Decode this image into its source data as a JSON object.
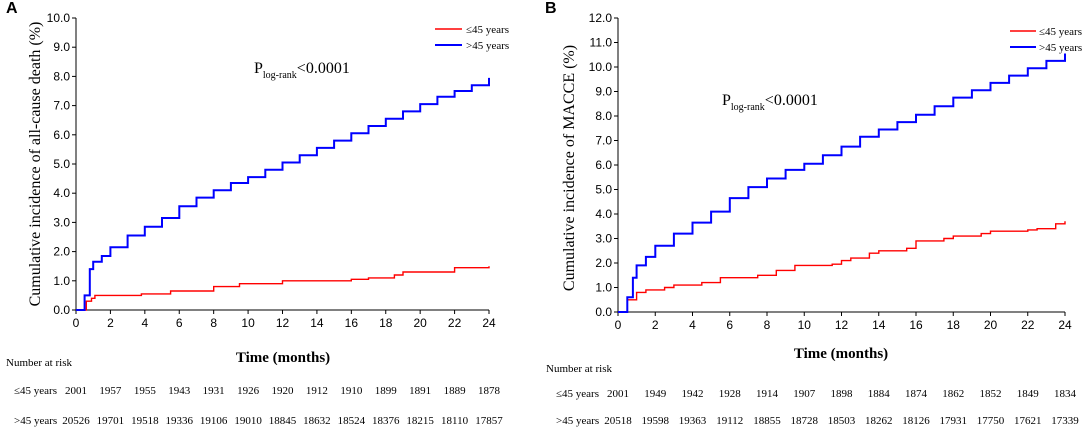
{
  "chart_data": [
    {
      "type": "line",
      "panel_label": "A",
      "ylabel": "Cumulative incidence of all-cause death (%)",
      "xlabel": "Time (months)",
      "xlim": [
        0,
        24
      ],
      "ylim": [
        0,
        10
      ],
      "x_ticks": [
        "0",
        "2",
        "4",
        "6",
        "8",
        "10",
        "12",
        "14",
        "16",
        "18",
        "20",
        "22",
        "24"
      ],
      "y_ticks": [
        "0.0",
        "1.0",
        "2.0",
        "3.0",
        "4.0",
        "5.0",
        "6.0",
        "7.0",
        "8.0",
        "9.0",
        "10.0"
      ],
      "annotation": {
        "p_main": "P",
        "p_sub": "log-rank",
        "p_value": "<0.0001"
      },
      "series": [
        {
          "name": "≤45 years",
          "color": "#ff0000",
          "x": [
            0,
            0.45,
            0.6,
            0.9,
            1.1,
            3.5,
            3.8,
            5.5,
            7.5,
            8.0,
            9.5,
            11.8,
            12.0,
            16.0,
            17.0,
            18.5,
            19.0,
            22.0,
            24.0
          ],
          "y": [
            0,
            0,
            0.3,
            0.4,
            0.5,
            0.5,
            0.55,
            0.65,
            0.65,
            0.8,
            0.9,
            0.9,
            1.0,
            1.05,
            1.1,
            1.2,
            1.3,
            1.45,
            1.5
          ]
        },
        {
          "name": ">45 years",
          "color": "#0000ff",
          "x": [
            0,
            0.3,
            0.5,
            0.8,
            1.0,
            1.5,
            2,
            3,
            4,
            5,
            6,
            7,
            8,
            9,
            10,
            11,
            12,
            13,
            14,
            15,
            16,
            17,
            18,
            19,
            20,
            21,
            22,
            23,
            24
          ],
          "y": [
            0,
            0,
            0.5,
            1.4,
            1.65,
            1.85,
            2.15,
            2.55,
            2.85,
            3.15,
            3.55,
            3.85,
            4.1,
            4.35,
            4.55,
            4.8,
            5.05,
            5.3,
            5.55,
            5.8,
            6.05,
            6.3,
            6.55,
            6.8,
            7.05,
            7.3,
            7.5,
            7.7,
            7.95
          ]
        }
      ],
      "risk_table": {
        "title": "Number at risk",
        "rows": [
          {
            "label": "≤45 years",
            "values": [
              "2001",
              "1957",
              "1955",
              "1943",
              "1931",
              "1926",
              "1920",
              "1912",
              "1910",
              "1899",
              "1891",
              "1889",
              "1878"
            ]
          },
          {
            "label": ">45 years",
            "values": [
              "20526",
              "19701",
              "19518",
              "19336",
              "19106",
              "19010",
              "18845",
              "18632",
              "18524",
              "18376",
              "18215",
              "18110",
              "17857"
            ]
          }
        ]
      }
    },
    {
      "type": "line",
      "panel_label": "B",
      "ylabel": "Cumulative incidence of MACCE (%)",
      "xlabel": "Time (months)",
      "xlim": [
        0,
        24
      ],
      "ylim": [
        0,
        12
      ],
      "x_ticks": [
        "0",
        "2",
        "4",
        "6",
        "8",
        "10",
        "12",
        "14",
        "16",
        "18",
        "20",
        "22",
        "24"
      ],
      "y_ticks": [
        "0.0",
        "1.0",
        "2.0",
        "3.0",
        "4.0",
        "5.0",
        "6.0",
        "7.0",
        "8.0",
        "9.0",
        "10.0",
        "11.0",
        "12.0"
      ],
      "annotation": {
        "p_main": "P",
        "p_sub": "log-rank",
        "p_value": "<0.0001"
      },
      "series": [
        {
          "name": "≤45 years",
          "color": "#ff0000",
          "x": [
            0,
            0.2,
            0.5,
            1.0,
            1.5,
            2.5,
            3.0,
            4.5,
            5.5,
            7.5,
            8.5,
            9.5,
            11.5,
            12.0,
            12.5,
            13.5,
            14.0,
            15.5,
            16.0,
            17.5,
            18.0,
            19.5,
            20.0,
            22.0,
            22.5,
            23.5,
            24.0
          ],
          "y": [
            0,
            0,
            0.5,
            0.8,
            0.9,
            1.0,
            1.1,
            1.2,
            1.4,
            1.5,
            1.7,
            1.9,
            1.95,
            2.1,
            2.2,
            2.4,
            2.5,
            2.6,
            2.9,
            3.0,
            3.1,
            3.2,
            3.3,
            3.35,
            3.4,
            3.6,
            3.7
          ]
        },
        {
          "name": ">45 years",
          "color": "#0000ff",
          "x": [
            0,
            0.2,
            0.5,
            0.8,
            1.0,
            1.5,
            2,
            3,
            4,
            5,
            6,
            7,
            8,
            9,
            10,
            11,
            12,
            13,
            14,
            15,
            16,
            17,
            18,
            19,
            20,
            21,
            22,
            23,
            24
          ],
          "y": [
            0,
            0,
            0.6,
            1.4,
            1.9,
            2.25,
            2.7,
            3.2,
            3.65,
            4.1,
            4.65,
            5.1,
            5.45,
            5.8,
            6.05,
            6.4,
            6.75,
            7.15,
            7.45,
            7.75,
            8.05,
            8.4,
            8.75,
            9.05,
            9.35,
            9.65,
            9.95,
            10.25,
            10.55
          ]
        }
      ],
      "risk_table": {
        "title": "Number at risk",
        "rows": [
          {
            "label": "≤45 years",
            "values": [
              "2001",
              "1949",
              "1942",
              "1928",
              "1914",
              "1907",
              "1898",
              "1884",
              "1874",
              "1862",
              "1852",
              "1849",
              "1834"
            ]
          },
          {
            "label": ">45 years",
            "values": [
              "20518",
              "19598",
              "19363",
              "19112",
              "18855",
              "18728",
              "18503",
              "18262",
              "18126",
              "17931",
              "17750",
              "17621",
              "17339"
            ]
          }
        ]
      }
    }
  ]
}
